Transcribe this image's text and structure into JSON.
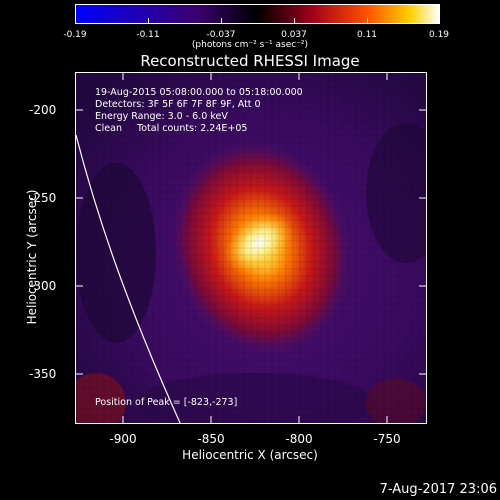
{
  "colorbar": {
    "ticks": [
      "-0.19",
      "-0.11",
      "-0.037",
      "0.037",
      "0.11",
      "0.19"
    ],
    "units": "(photons cm⁻² s⁻¹ asec⁻²)"
  },
  "title": "Reconstructed RHESSI Image",
  "info": {
    "line1": "19-Aug-2015 05:08:00.000 to 05:18:00.000",
    "line2": "Detectors: 3F 5F 6F 7F 8F 9F, Att 0",
    "line3": "Energy Range: 3.0 - 6.0 keV",
    "line4": "Clean     Total counts: 2.24E+05",
    "peak": "Position of Peak = [-823,-273]"
  },
  "axes": {
    "xlabel": "Heliocentric X (arcsec)",
    "ylabel": "Heliocentric Y (arcsec)",
    "xticks": [
      "-900",
      "-850",
      "-800",
      "-750"
    ],
    "yticks": [
      "-200",
      "-250",
      "-300",
      "-350"
    ]
  },
  "datestamp": "7-Aug-2017 23:06"
}
